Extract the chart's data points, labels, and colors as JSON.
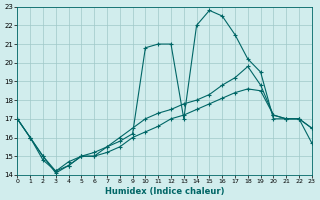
{
  "xlabel": "Humidex (Indice chaleur)",
  "background_color": "#d1eded",
  "grid_color": "#a0c8c8",
  "line_color": "#006666",
  "xlim": [
    0,
    23
  ],
  "ylim": [
    14,
    23
  ],
  "xticks": [
    0,
    1,
    2,
    3,
    4,
    5,
    6,
    7,
    8,
    9,
    10,
    11,
    12,
    13,
    14,
    15,
    16,
    17,
    18,
    19,
    20,
    21,
    22,
    23
  ],
  "yticks": [
    14,
    15,
    16,
    17,
    18,
    19,
    20,
    21,
    22,
    23
  ],
  "series1_x": [
    0,
    1,
    2,
    3,
    4,
    5,
    6,
    7,
    8,
    9,
    10,
    11,
    12,
    13,
    14,
    15,
    16,
    17,
    18,
    19,
    20,
    21,
    22,
    23
  ],
  "series1_y": [
    17,
    16,
    15,
    14.1,
    14.5,
    15.0,
    15.0,
    15.5,
    15.8,
    16.2,
    20.8,
    21.0,
    21.0,
    17.0,
    22.0,
    22.8,
    22.5,
    21.5,
    20.2,
    19.5,
    17.0,
    17.0,
    17.0,
    16.5
  ],
  "series2_x": [
    0,
    1,
    2,
    3,
    4,
    5,
    6,
    7,
    8,
    9,
    10,
    11,
    12,
    13,
    14,
    15,
    16,
    17,
    18,
    19,
    20,
    21,
    22,
    23
  ],
  "series2_y": [
    17,
    16,
    15.0,
    14.2,
    14.7,
    15.0,
    15.2,
    15.5,
    16.0,
    16.5,
    17.0,
    17.3,
    17.5,
    17.8,
    18.0,
    18.3,
    18.8,
    19.2,
    19.8,
    18.8,
    17.2,
    17.0,
    17.0,
    16.5
  ],
  "series3_x": [
    0,
    1,
    2,
    3,
    4,
    5,
    6,
    7,
    8,
    9,
    10,
    11,
    12,
    13,
    14,
    15,
    16,
    17,
    18,
    19,
    20,
    21,
    22,
    23
  ],
  "series3_y": [
    17,
    16,
    14.8,
    14.2,
    14.5,
    15.0,
    15.0,
    15.2,
    15.5,
    16.0,
    16.3,
    16.6,
    17.0,
    17.2,
    17.5,
    17.8,
    18.1,
    18.4,
    18.6,
    18.5,
    17.2,
    17.0,
    17.0,
    15.7
  ]
}
